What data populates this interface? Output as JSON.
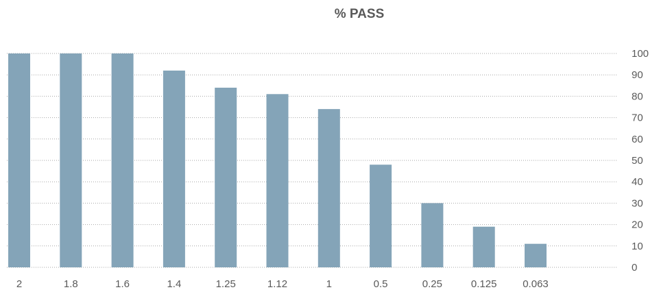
{
  "chart_data": {
    "type": "bar",
    "title": "% PASS",
    "xlabel": "",
    "ylabel": "",
    "categories": [
      "2",
      "1.8",
      "1.6",
      "1.4",
      "1.25",
      "1.12",
      "1",
      "0.5",
      "0.25",
      "0.125",
      "0.063"
    ],
    "values": [
      100,
      100,
      100,
      92,
      84,
      81,
      74,
      48,
      30,
      19,
      11
    ],
    "ylim": [
      0,
      100
    ],
    "yticks": [
      0,
      10,
      20,
      30,
      40,
      50,
      60,
      70,
      80,
      90,
      100
    ],
    "y_axis_position": "right",
    "grid": true,
    "legend": "none",
    "bar_color": "#84A4B8",
    "grid_color": "#A6A6A6",
    "text_color": "#595959"
  }
}
